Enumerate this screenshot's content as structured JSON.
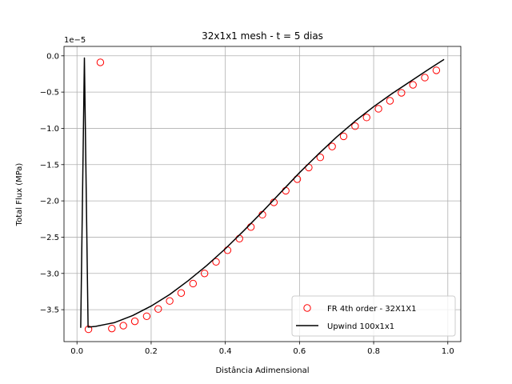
{
  "chart_data": {
    "type": "line",
    "title": "32x1x1 mesh - t = 5 dias",
    "xlabel": "Distância Adimensional",
    "ylabel": "Total Flux (MPa)",
    "y_offset_label": "1e−5",
    "xlim": [
      -0.035,
      1.035
    ],
    "ylim": [
      -3.94,
      0.13
    ],
    "x_ticks": [
      0.0,
      0.2,
      0.4,
      0.6,
      0.8,
      1.0
    ],
    "x_tick_labels": [
      "0.0",
      "0.2",
      "0.4",
      "0.6",
      "0.8",
      "1.0"
    ],
    "y_ticks": [
      0.0,
      -0.5,
      -1.0,
      -1.5,
      -2.0,
      -2.5,
      -3.0,
      -3.5
    ],
    "y_tick_labels": [
      "0.0",
      "−0.5",
      "−1.0",
      "−1.5",
      "−2.0",
      "−2.5",
      "−3.0",
      "−3.5"
    ],
    "grid": true,
    "legend_position": "lower-right",
    "series": [
      {
        "name": "FR 4th order - 32X1X1",
        "style": "markers",
        "color": "#ff0000",
        "x": [
          0.031,
          0.063,
          0.094,
          0.125,
          0.156,
          0.188,
          0.219,
          0.25,
          0.281,
          0.313,
          0.344,
          0.375,
          0.406,
          0.438,
          0.469,
          0.5,
          0.531,
          0.563,
          0.594,
          0.625,
          0.656,
          0.688,
          0.719,
          0.75,
          0.781,
          0.813,
          0.844,
          0.875,
          0.906,
          0.938,
          0.969
        ],
        "y": [
          -3.77,
          -0.09,
          -3.76,
          -3.72,
          -3.66,
          -3.59,
          -3.49,
          -3.38,
          -3.27,
          -3.14,
          -3.0,
          -2.84,
          -2.68,
          -2.52,
          -2.36,
          -2.19,
          -2.02,
          -1.86,
          -1.7,
          -1.54,
          -1.4,
          -1.25,
          -1.11,
          -0.97,
          -0.85,
          -0.73,
          -0.62,
          -0.51,
          -0.4,
          -0.3,
          -0.2
        ]
      },
      {
        "name": "Upwind 100x1x1",
        "style": "line",
        "color": "#000000",
        "x": [
          0.01,
          0.02,
          0.03,
          0.05,
          0.08,
          0.1,
          0.15,
          0.2,
          0.25,
          0.3,
          0.35,
          0.4,
          0.45,
          0.5,
          0.55,
          0.6,
          0.65,
          0.7,
          0.75,
          0.8,
          0.85,
          0.9,
          0.95,
          0.99
        ],
        "y": [
          -3.75,
          -0.03,
          -3.74,
          -3.73,
          -3.7,
          -3.68,
          -3.58,
          -3.45,
          -3.29,
          -3.1,
          -2.89,
          -2.66,
          -2.41,
          -2.15,
          -1.88,
          -1.61,
          -1.36,
          -1.12,
          -0.9,
          -0.7,
          -0.52,
          -0.35,
          -0.18,
          -0.05
        ]
      }
    ]
  }
}
